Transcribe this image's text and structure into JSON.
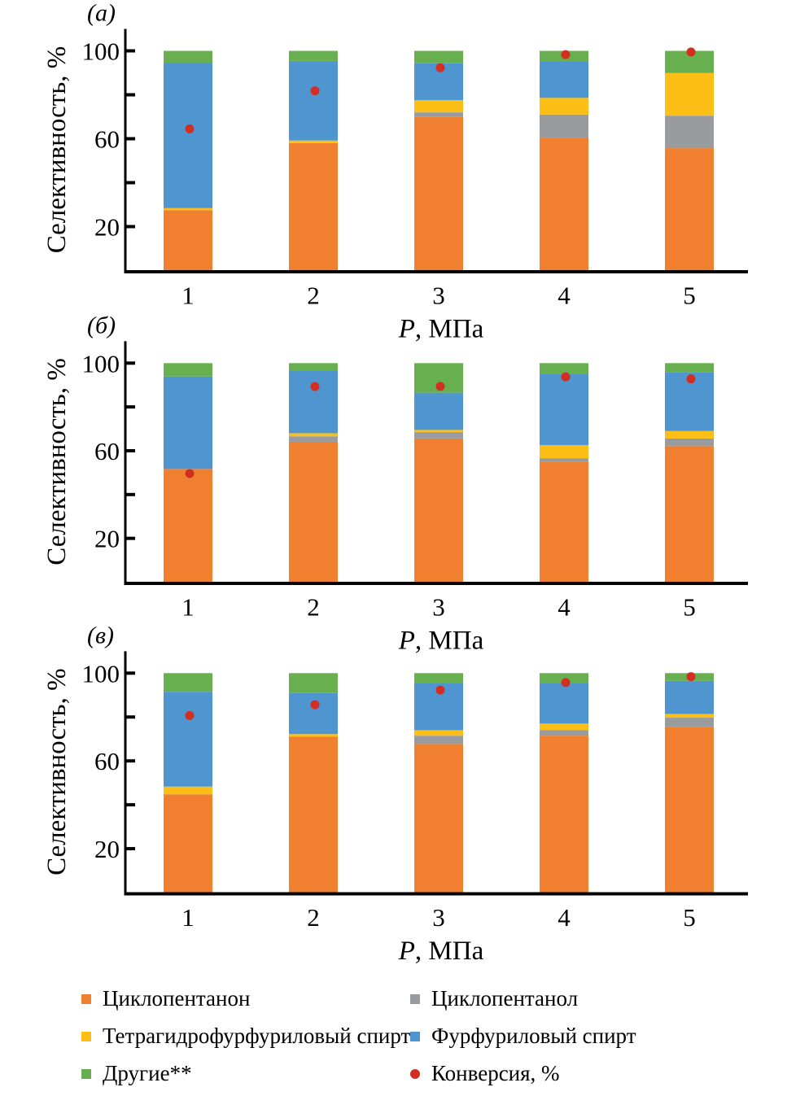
{
  "chart_data": {
    "type": "bar",
    "stacked": true,
    "xlabel_var": "P",
    "xlabel_unit": ", МПа",
    "ylabel": "Селективность, %",
    "ylim": [
      0,
      110
    ],
    "yticks": [
      20,
      60,
      100
    ],
    "categories": [
      "1",
      "2",
      "3",
      "4",
      "5"
    ],
    "legend": {
      "placement": "bottom",
      "items": [
        {
          "key": "cyclopentanone",
          "label": "Циклопентанон",
          "color": "#f08030",
          "kind": "bar"
        },
        {
          "key": "cyclopentanol",
          "label": "Циклопентанол",
          "color": "#999c9e",
          "kind": "bar"
        },
        {
          "key": "thfa",
          "label": "Тетрагидрофурфуриловый спирт",
          "color": "#fdbf15",
          "kind": "bar"
        },
        {
          "key": "furfuryl",
          "label": "Фурфуриловый спирт",
          "color": "#4f96d1",
          "kind": "bar"
        },
        {
          "key": "others",
          "label": "Другие**",
          "color": "#68b04f",
          "kind": "bar"
        },
        {
          "key": "conversion",
          "label": "Конверсия, %",
          "color": "#d22e22",
          "kind": "dot"
        }
      ]
    },
    "panels": [
      {
        "label": "(а)",
        "series": [
          {
            "name": "Циклопентанон",
            "values": [
              27.5,
              58.0,
              70.1,
              60.2,
              55.7
            ]
          },
          {
            "name": "Циклопентанол",
            "values": [
              0,
              0,
              1.9,
              10.8,
              14.8
            ]
          },
          {
            "name": "Тетрагидрофурфуриловый спирт",
            "values": [
              0.9,
              1.2,
              5.6,
              7.6,
              19.4
            ]
          },
          {
            "name": "Фурфуриловый спирт",
            "values": [
              66.2,
              36.2,
              16.7,
              16.4,
              0
            ]
          },
          {
            "name": "Другие**",
            "values": [
              5.4,
              4.6,
              5.7,
              5.0,
              10.1
            ]
          }
        ],
        "conversion": [
          64.5,
          81.8,
          92.3,
          98.3,
          99.5
        ]
      },
      {
        "label": "(б)",
        "series": [
          {
            "name": "Циклопентанон",
            "values": [
              51.7,
              64.1,
              65.6,
              55.1,
              62.1
            ]
          },
          {
            "name": "Циклопентанол",
            "values": [
              0,
              2.5,
              2.9,
              1.5,
              3.5
            ]
          },
          {
            "name": "Тетрагидрофурфуриловый спирт",
            "values": [
              0,
              1.4,
              1.0,
              6.0,
              3.4
            ]
          },
          {
            "name": "Фурфуриловый спирт",
            "values": [
              42.2,
              28.4,
              17.0,
              32.3,
              26.9
            ]
          },
          {
            "name": "Другие**",
            "values": [
              6.1,
              3.6,
              13.5,
              5.1,
              4.1
            ]
          }
        ],
        "conversion": [
          49.6,
          89.3,
          89.4,
          93.7,
          92.8
        ]
      },
      {
        "label": "(в)",
        "series": [
          {
            "name": "Циклопентанон",
            "values": [
              44.8,
              71.0,
              67.7,
              71.5,
              75.6
            ]
          },
          {
            "name": "Циклопентанол",
            "values": [
              0,
              0,
              3.8,
              2.5,
              4.1
            ]
          },
          {
            "name": "Тетрагидрофурфуриловый спирт",
            "values": [
              3.5,
              1.2,
              2.5,
              3.0,
              1.7
            ]
          },
          {
            "name": "Фурфуриловый спирт",
            "values": [
              43.2,
              18.7,
              21.3,
              18.3,
              15.1
            ]
          },
          {
            "name": "Другие**",
            "values": [
              8.5,
              9.1,
              4.7,
              4.7,
              3.5
            ]
          }
        ],
        "conversion": [
          80.7,
          85.6,
          92.3,
          95.7,
          98.4
        ]
      }
    ]
  }
}
